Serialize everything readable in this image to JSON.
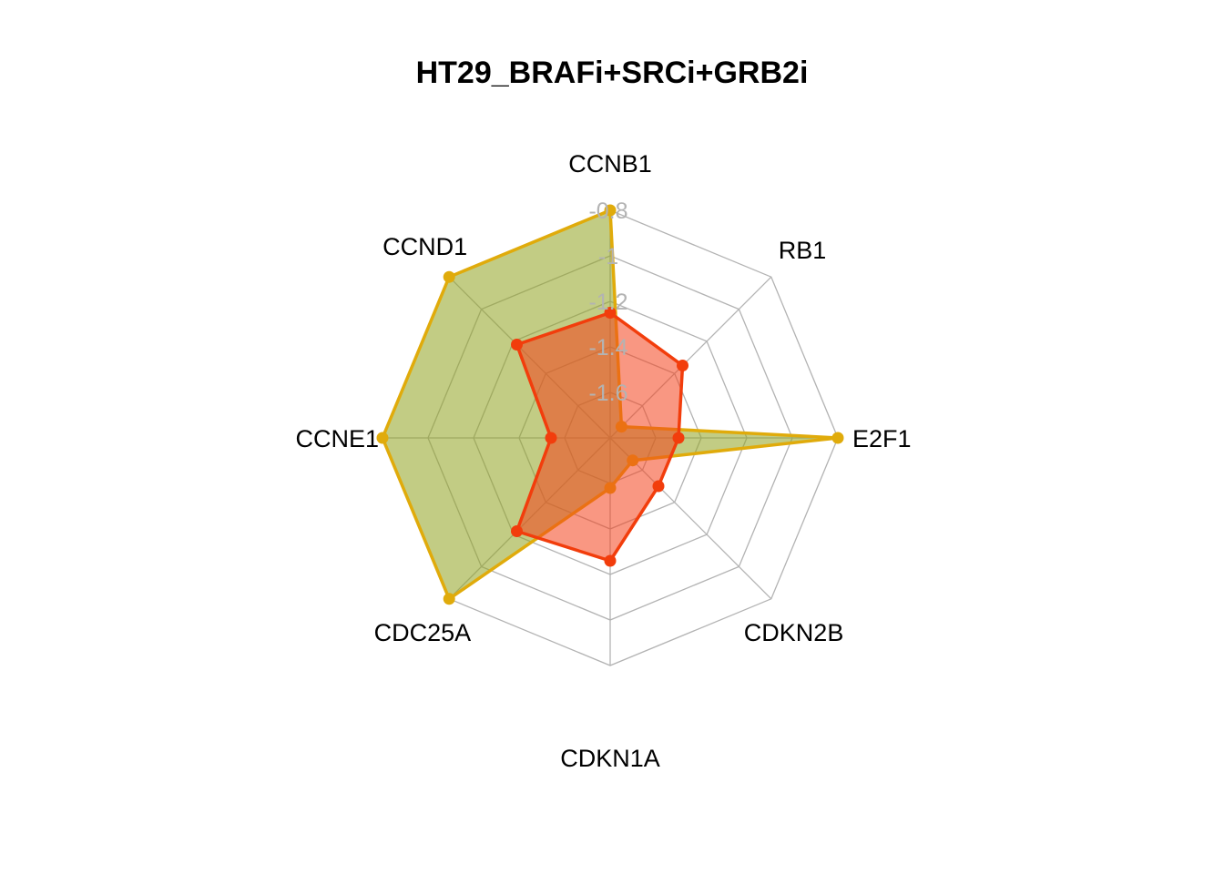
{
  "chart_data": {
    "type": "radar",
    "title": "HT29_BRAFi+SRCi+GRB2i",
    "axes": [
      "CCNB1",
      "RB1",
      "E2F1",
      "CDKN2B",
      "CDKN1A",
      "CDC25A",
      "CCNE1",
      "CCND1"
    ],
    "range": [
      -1.8,
      -0.8
    ],
    "tick_values": [
      -0.8,
      -1,
      -1.2,
      -1.4,
      -1.6
    ],
    "tick_labels": [
      "-0.8",
      "-1",
      "-1.2",
      "-1.4",
      "-1.6"
    ],
    "grid_levels": 5,
    "series": [
      {
        "values": [
          -0.8,
          -1.73,
          -0.8,
          -1.66,
          -1.58,
          -0.8,
          -0.8,
          -0.8
        ],
        "fill": "#8fa31f",
        "line": "#e0ab0b"
      },
      {
        "values": [
          -1.25,
          -1.35,
          -1.5,
          -1.5,
          -1.26,
          -1.22,
          -1.54,
          -1.22
        ],
        "fill": "#f4411c",
        "line": "#f23d0c"
      }
    ],
    "colors": {
      "series_1_fill": "#8fa31f",
      "series_1_line": "#e0ab0b",
      "series_2_fill": "#f4411c",
      "series_2_line": "#f23d0c",
      "grid": "#b3b3b3"
    }
  }
}
